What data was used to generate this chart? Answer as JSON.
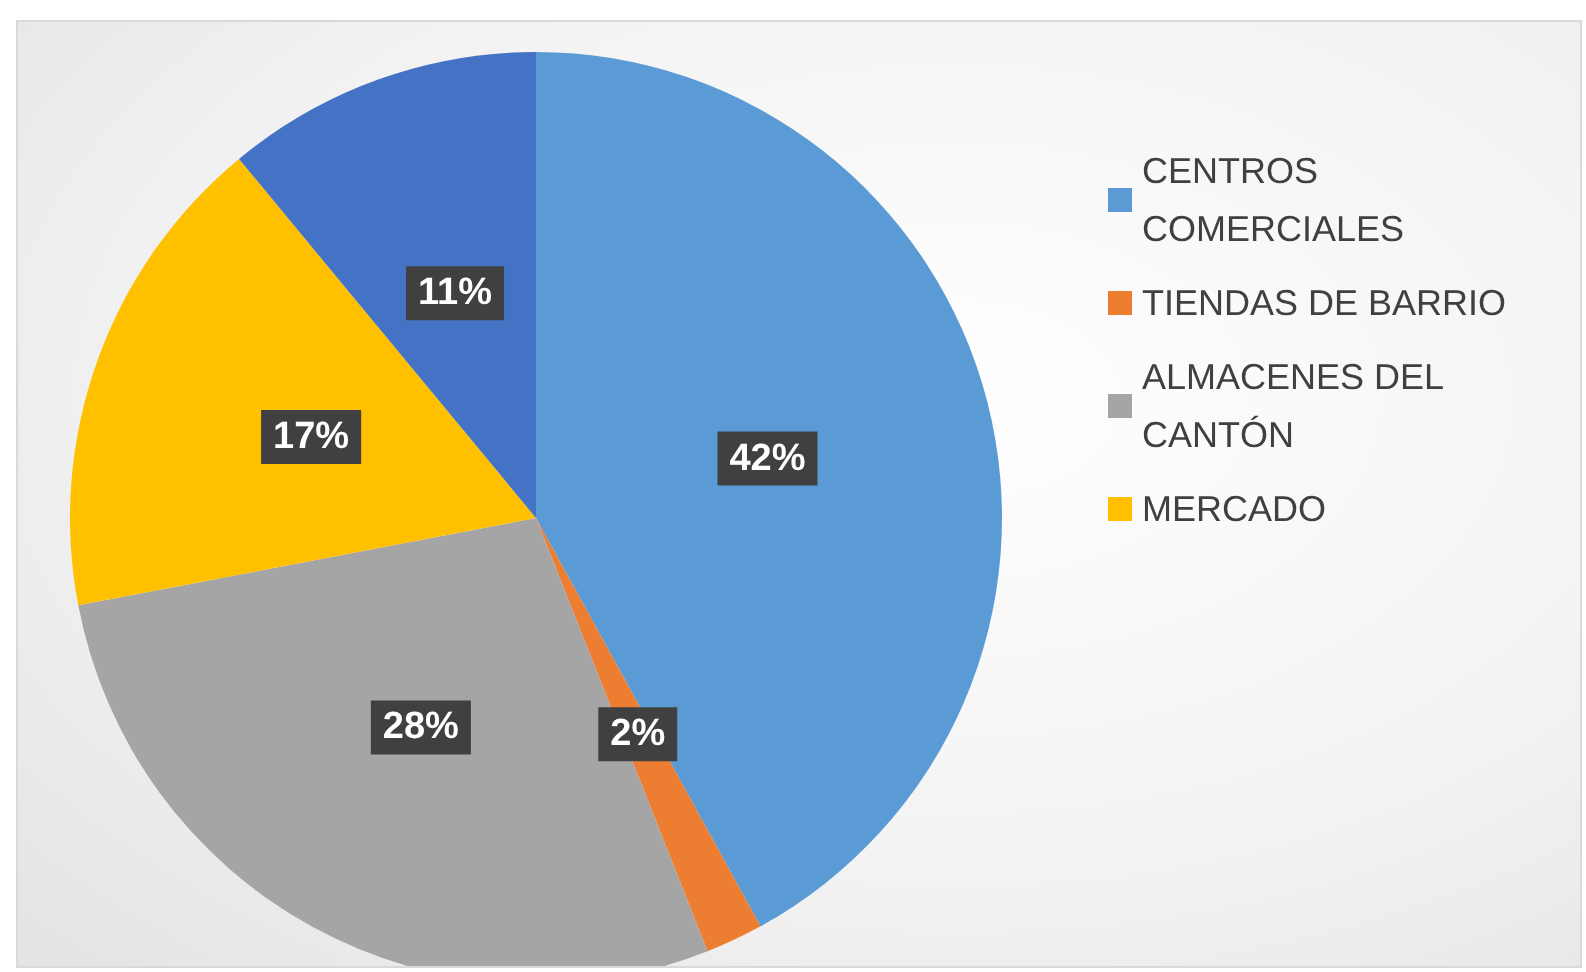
{
  "chart_data": {
    "type": "pie",
    "categories": [
      "CENTROS COMERCIALES",
      "TIENDAS DE BARRIO",
      "ALMACENES DEL CANTÓN",
      "MERCADO",
      null
    ],
    "values": [
      42,
      2,
      28,
      17,
      11
    ],
    "value_labels": [
      "42%",
      "2%",
      "28%",
      "17%",
      "11%"
    ],
    "colors": [
      "#5b9bd5",
      "#ed7d31",
      "#a5a5a5",
      "#ffc000",
      "#4472c4"
    ],
    "legend": "right"
  }
}
